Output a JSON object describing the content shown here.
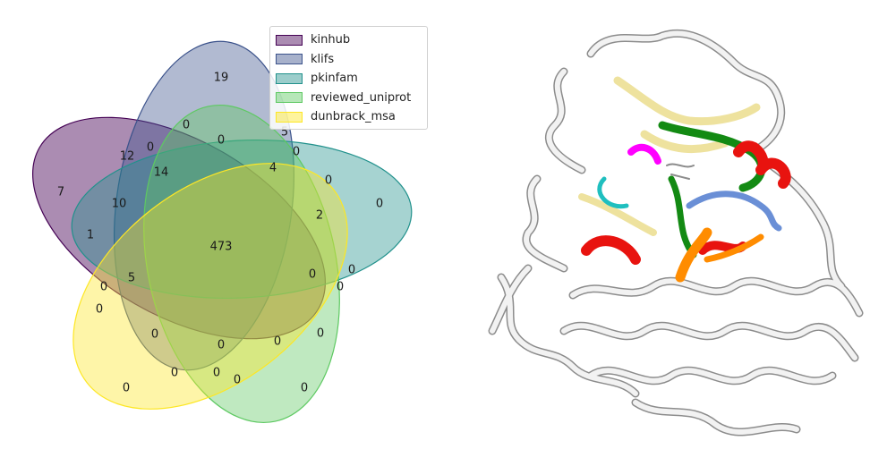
{
  "venn": {
    "sets": [
      {
        "name": "kinhub",
        "color": "#440154"
      },
      {
        "name": "klifs",
        "color": "#3b528b"
      },
      {
        "name": "pkinfam",
        "color": "#21918c"
      },
      {
        "name": "reviewed_uniprot",
        "color": "#5ec962"
      },
      {
        "name": "dunbrack_msa",
        "color": "#fde725"
      }
    ],
    "regions": [
      {
        "id": "a",
        "value": "19"
      },
      {
        "id": "b",
        "value": "0"
      },
      {
        "id": "c",
        "value": "0"
      },
      {
        "id": "d",
        "value": "5"
      },
      {
        "id": "e",
        "value": "0"
      },
      {
        "id": "f",
        "value": "12"
      },
      {
        "id": "g",
        "value": "0"
      },
      {
        "id": "h",
        "value": "4"
      },
      {
        "id": "i",
        "value": "14"
      },
      {
        "id": "j",
        "value": "0"
      },
      {
        "id": "k",
        "value": "7"
      },
      {
        "id": "l",
        "value": "10"
      },
      {
        "id": "m",
        "value": "2"
      },
      {
        "id": "n",
        "value": "0"
      },
      {
        "id": "o",
        "value": "1"
      },
      {
        "id": "p",
        "value": "473"
      },
      {
        "id": "q",
        "value": "0"
      },
      {
        "id": "r",
        "value": "5"
      },
      {
        "id": "s",
        "value": "0"
      },
      {
        "id": "t",
        "value": "0"
      },
      {
        "id": "u",
        "value": "0"
      },
      {
        "id": "v",
        "value": "0"
      },
      {
        "id": "w",
        "value": "0"
      },
      {
        "id": "x",
        "value": "0"
      },
      {
        "id": "y",
        "value": "0"
      },
      {
        "id": "z",
        "value": "0"
      },
      {
        "id": "aa",
        "value": "0"
      },
      {
        "id": "ab",
        "value": "0"
      },
      {
        "id": "ac",
        "value": "0"
      },
      {
        "id": "ad",
        "value": "0"
      },
      {
        "id": "ae",
        "value": "0"
      }
    ]
  },
  "protein_colors": {
    "backbone": "#f2f2f2",
    "outline": "#8c8c8c",
    "helix_red": "#e8130f",
    "strand_green": "#138a13",
    "loop_yellow": "#eee29e",
    "magenta": "#ff00ff",
    "cyan": "#1fbfbf",
    "blue": "#6a8fd6",
    "orange": "#ff8c00"
  }
}
